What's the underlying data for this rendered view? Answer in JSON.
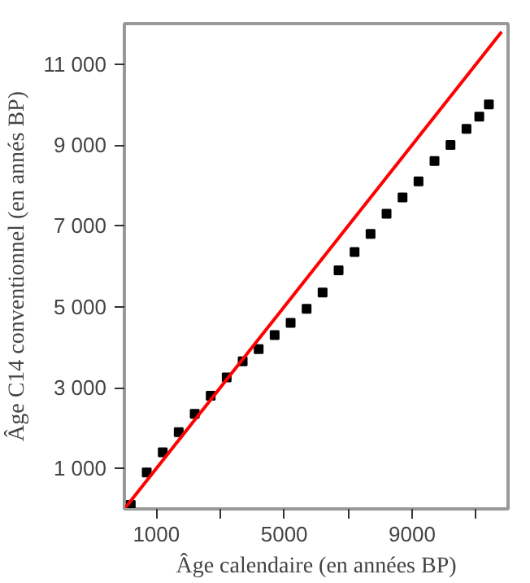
{
  "chart_data": {
    "type": "scatter",
    "xlabel": "Âge calendaire (en années BP)",
    "ylabel": "Âge C14 conventionnel (en annés BP)",
    "xlim": [
      0,
      12000
    ],
    "ylim": [
      0,
      12000
    ],
    "xticks": [
      {
        "value": 1000,
        "label": "1000"
      },
      {
        "value": 3000,
        "label": null
      },
      {
        "value": 5000,
        "label": "5000"
      },
      {
        "value": 7000,
        "label": null
      },
      {
        "value": 9000,
        "label": "9000"
      },
      {
        "value": 11000,
        "label": null
      }
    ],
    "yticks": [
      {
        "value": 1000,
        "label": "1 000"
      },
      {
        "value": 3000,
        "label": "3 000"
      },
      {
        "value": 5000,
        "label": "5 000"
      },
      {
        "value": 7000,
        "label": "7 000"
      },
      {
        "value": 9000,
        "label": "9 000"
      },
      {
        "value": 11000,
        "label": "11 000"
      }
    ],
    "grid": false,
    "series": [
      {
        "marker": "square",
        "color": "#000000",
        "x": [
          200,
          700,
          1200,
          1700,
          2200,
          2700,
          3200,
          3700,
          4200,
          4700,
          5200,
          5700,
          6200,
          6700,
          7200,
          7700,
          8200,
          8700,
          9200,
          9700,
          10200,
          10700,
          11100,
          11400
        ],
        "values": [
          100,
          900,
          1400,
          1900,
          2350,
          2800,
          3250,
          3650,
          3950,
          4300,
          4600,
          4950,
          5350,
          5900,
          6350,
          6800,
          7300,
          7700,
          8100,
          8600,
          9000,
          9400,
          9700,
          10000
        ]
      },
      {
        "type": "line",
        "color": "#ff0000",
        "x": [
          0,
          11800
        ],
        "values": [
          0,
          11800
        ],
        "line_style": "solid"
      }
    ]
  }
}
